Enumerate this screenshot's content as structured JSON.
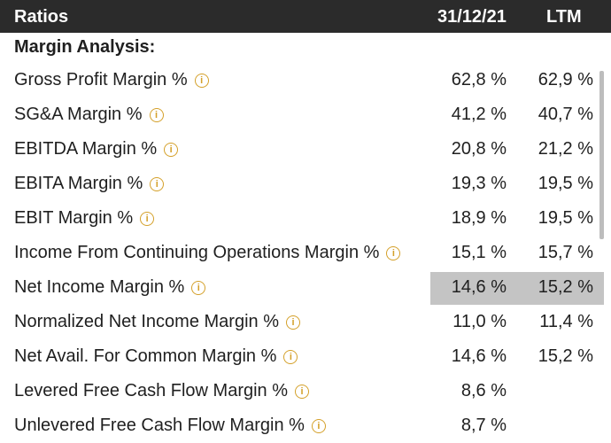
{
  "header": {
    "title": "Ratios",
    "col1": "31/12/21",
    "col2": "LTM"
  },
  "section_title": "Margin Analysis:",
  "info_glyph": "i",
  "rows": [
    {
      "label": "Gross Profit Margin %",
      "v1": "62,8 %",
      "v2": "62,9 %"
    },
    {
      "label": "SG&A Margin %",
      "v1": "41,2 %",
      "v2": "40,7 %"
    },
    {
      "label": "EBITDA Margin %",
      "v1": "20,8 %",
      "v2": "21,2 %"
    },
    {
      "label": "EBITA Margin %",
      "v1": "19,3 %",
      "v2": "19,5 %"
    },
    {
      "label": "EBIT Margin %",
      "v1": "18,9 %",
      "v2": "19,5 %"
    },
    {
      "label": "Income From Continuing Operations Margin %",
      "v1": "15,1 %",
      "v2": "15,7 %"
    },
    {
      "label": "Net Income Margin %",
      "v1": "14,6 %",
      "v2": "15,2 %",
      "highlighted": true
    },
    {
      "label": "Normalized Net Income Margin %",
      "v1": "11,0 %",
      "v2": "11,4 %"
    },
    {
      "label": "Net Avail. For Common Margin %",
      "v1": "14,6 %",
      "v2": "15,2 %"
    },
    {
      "label": "Levered Free Cash Flow Margin %",
      "v1": "8,6 %",
      "v2": ""
    },
    {
      "label": "Unlevered Free Cash Flow Margin %",
      "v1": "8,7 %",
      "v2": ""
    }
  ],
  "colors": {
    "header_bg": "#2b2b2b",
    "info_icon": "#d4a02a",
    "highlight_bg": "#c4c4c4"
  }
}
